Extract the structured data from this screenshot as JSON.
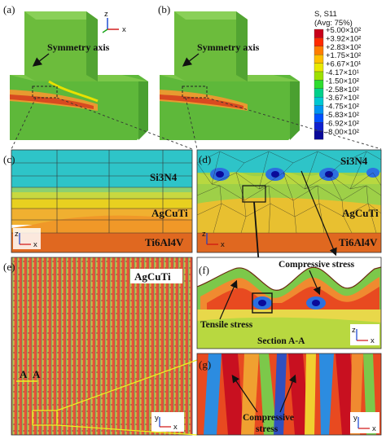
{
  "panels": {
    "a": "(a)",
    "b": "(b)",
    "c": "(c)",
    "d": "(d)",
    "e": "(e)",
    "f": "(f)",
    "g": "(g)"
  },
  "annotations": {
    "symmetry_axis_a": "Symmetry axis",
    "symmetry_axis_b": "Symmetry axis",
    "si3n4_c": "Si3N4",
    "agcuti_c": "AgCuTi",
    "ti6al4v_c": "Ti6Al4V",
    "si3n4_d": "Si3N4",
    "agcuti_d": "AgCuTi",
    "ti6al4v_d": "Ti6Al4V",
    "agcuti_e": "AgCuTi",
    "section_marker": "A",
    "section_marker_2": "A",
    "compressive_stress_f": "Compressive stress",
    "tensile_stress_f": "Tensile stress",
    "section_aa": "Section A-A",
    "compressive_stress_g_1": "Compressive",
    "compressive_stress_g_2": "stress"
  },
  "axes": {
    "z": "z",
    "x": "x",
    "y": "y"
  },
  "legend": {
    "title1": "S, S11",
    "title2": "(Avg: 75%)",
    "entries": [
      {
        "label": "+5.00×10²",
        "color": "#c8001a"
      },
      {
        "label": "+3.92×10²",
        "color": "#ff2a00"
      },
      {
        "label": "+2.83×10²",
        "color": "#ff7d00"
      },
      {
        "label": "+1.75×10²",
        "color": "#ffc000"
      },
      {
        "label": "+6.67×10¹",
        "color": "#e8e800"
      },
      {
        "label": "-4.17×10¹",
        "color": "#9de000"
      },
      {
        "label": "-1.50×10²",
        "color": "#2edc2e"
      },
      {
        "label": "-2.58×10²",
        "color": "#00d08a"
      },
      {
        "label": "-3.67×10²",
        "color": "#00c8d2"
      },
      {
        "label": "-4.75×10²",
        "color": "#0094f0"
      },
      {
        "label": "-5.83×10²",
        "color": "#0050ff"
      },
      {
        "label": "-6.92×10²",
        "color": "#1020d0"
      },
      {
        "label": "-8.00×10²",
        "color": "#0a0a9a"
      }
    ]
  }
}
